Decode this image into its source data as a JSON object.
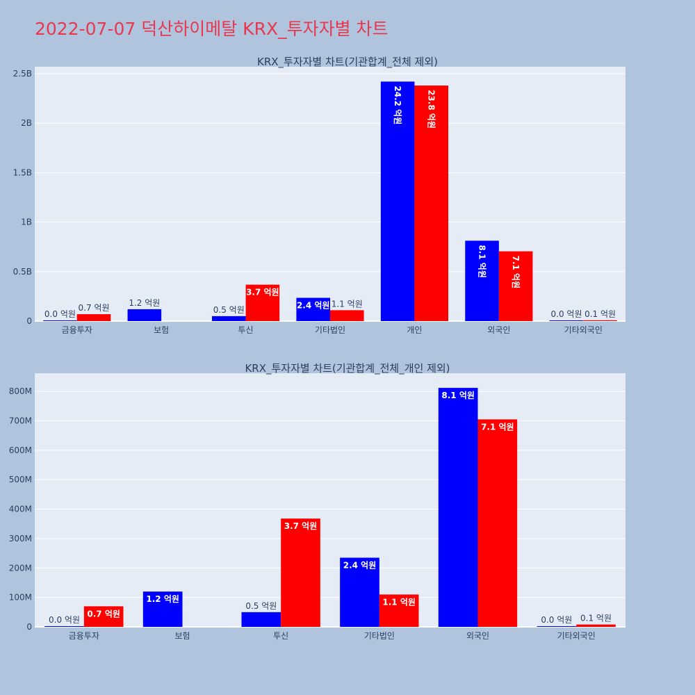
{
  "page_title": "2022-07-07 덕산하이메탈 KRX_투자자별 차트",
  "colors": {
    "background": "#b0c4de",
    "plot_bg": "#e5ecf6",
    "title": "#e8384f",
    "buy": "#0000ff",
    "sell": "#ff0000",
    "text": "#2a3f5f"
  },
  "chart_data": [
    {
      "type": "bar",
      "title": "KRX_투자자별 차트(기관합계_전체 제외)",
      "categories": [
        "금융투자",
        "보험",
        "투신",
        "기타법인",
        "개인",
        "외국인",
        "기타외국인"
      ],
      "ylim": [
        0,
        2500000000
      ],
      "yticks": [
        0,
        500000000,
        1000000000,
        1500000000,
        2000000000,
        2500000000
      ],
      "yticklabels": [
        "0",
        "0.5B",
        "1B",
        "1.5B",
        "2B",
        "2.5B"
      ],
      "grid": true,
      "series": [
        {
          "color": "#0000ff",
          "values": [
            2000000,
            120000000,
            50000000,
            235000000,
            2420000000,
            812000000,
            1000000
          ],
          "labels": [
            "0.0 억원",
            "1.2 억원",
            "0.5 억원",
            "2.4 억원",
            "24.2 억원",
            "8.1 억원",
            "0.0 억원"
          ]
        },
        {
          "color": "#ff0000",
          "values": [
            70000000,
            0,
            368000000,
            110000000,
            2380000000,
            705000000,
            8000000
          ],
          "labels": [
            "0.7 억원",
            "",
            "3.7 억원",
            "1.1 억원",
            "23.8 억원",
            "7.1 억원",
            "0.1 억원"
          ]
        }
      ]
    },
    {
      "type": "bar",
      "title": "KRX_투자자별 차트(기관합계_전체_개인 제외)",
      "categories": [
        "금융투자",
        "보험",
        "투신",
        "기타법인",
        "외국인",
        "기타외국인"
      ],
      "ylim": [
        0,
        850000000
      ],
      "yticks": [
        0,
        100000000,
        200000000,
        300000000,
        400000000,
        500000000,
        600000000,
        700000000,
        800000000
      ],
      "yticklabels": [
        "0",
        "100M",
        "200M",
        "300M",
        "400M",
        "500M",
        "600M",
        "700M",
        "800M"
      ],
      "grid": true,
      "series": [
        {
          "color": "#0000ff",
          "values": [
            2000000,
            120000000,
            50000000,
            235000000,
            812000000,
            1000000
          ],
          "labels": [
            "0.0 억원",
            "1.2 억원",
            "0.5 억원",
            "2.4 억원",
            "8.1 억원",
            "0.0 억원"
          ]
        },
        {
          "color": "#ff0000",
          "values": [
            70000000,
            0,
            368000000,
            110000000,
            705000000,
            8000000
          ],
          "labels": [
            "0.7 억원",
            "",
            "3.7 억원",
            "1.1 억원",
            "7.1 억원",
            "0.1 억원"
          ]
        }
      ]
    }
  ]
}
